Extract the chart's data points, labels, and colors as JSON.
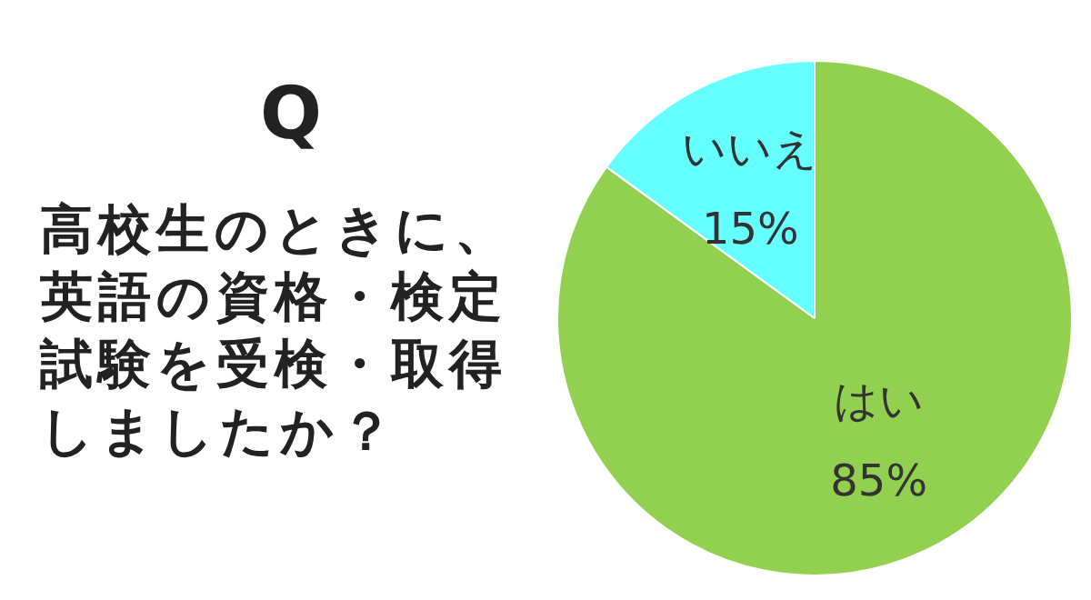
{
  "chart_data": {
    "type": "pie",
    "title": "Q",
    "subtitle": "高校生のときに、英語の資格・検定試験を受検・取得しましたか？",
    "categories": [
      "はい",
      "いいえ"
    ],
    "values": [
      85,
      15
    ],
    "colors": [
      "#92d050",
      "#66ffff"
    ],
    "value_labels": [
      "85%",
      "15%"
    ],
    "legend": false
  }
}
